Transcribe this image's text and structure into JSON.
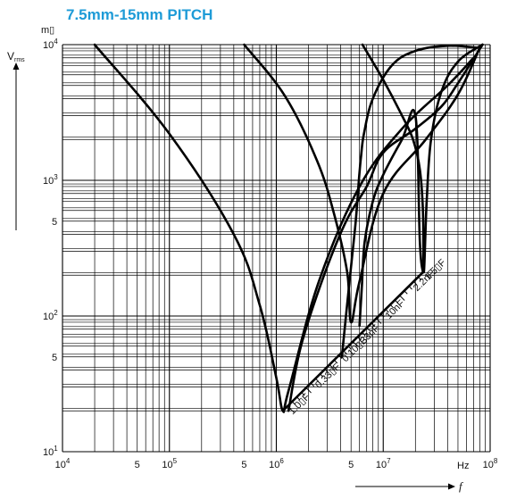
{
  "chart_data": {
    "type": "line",
    "title": "7.5mm-15mm PITCH",
    "x_scale": "log",
    "y_scale": "log",
    "xlim": [
      10000,
      100000000
    ],
    "ylim": [
      10,
      10000
    ],
    "grid": true,
    "y_unit_label": "m▯",
    "y_axis_symbol": "V",
    "y_axis_subscript": "rms",
    "x_axis_symbol": "f",
    "x_unit_label": "Hz",
    "x_ticks": [
      {
        "value": 10000,
        "base": "10",
        "exp": "4"
      },
      {
        "value": 50000,
        "base": "5",
        "exp": ""
      },
      {
        "value": 100000,
        "base": "10",
        "exp": "5"
      },
      {
        "value": 500000,
        "base": "5",
        "exp": ""
      },
      {
        "value": 1000000,
        "base": "10",
        "exp": "6"
      },
      {
        "value": 5000000,
        "base": "5",
        "exp": ""
      },
      {
        "value": 10000000,
        "base": "10",
        "exp": "7"
      },
      {
        "value": 100000000,
        "base": "10",
        "exp": "8"
      }
    ],
    "y_ticks": [
      {
        "value": 10,
        "base": "10",
        "exp": "1"
      },
      {
        "value": 50,
        "base": "5",
        "exp": ""
      },
      {
        "value": 100,
        "base": "10",
        "exp": "2"
      },
      {
        "value": 500,
        "base": "5",
        "exp": ""
      },
      {
        "value": 1000,
        "base": "10",
        "exp": "3"
      },
      {
        "value": 10000,
        "base": "10",
        "exp": "4"
      }
    ],
    "series": [
      {
        "name": "1.0▯F",
        "x": [
          20000,
          100000,
          400000,
          700000,
          1000000,
          1150000,
          1300000,
          2500000,
          6000000,
          15000000,
          40000000,
          70000000
        ],
        "y": [
          10000,
          2200,
          400,
          120,
          35,
          20,
          28,
          180,
          900,
          2400,
          5000,
          8000
        ]
      },
      {
        "name": "0.33▯F",
        "x": [
          500000,
          1200000,
          2400000,
          3500000,
          4600000,
          5000000,
          6000000,
          10000000,
          25000000,
          50000000,
          80000000
        ],
        "y": [
          10000,
          4200,
          1400,
          550,
          210,
          90,
          180,
          800,
          2000,
          4300,
          9500
        ]
      },
      {
        "name": "0.10▯F",
        "x": [
          1300000,
          1700000,
          2800000,
          4500000,
          7000000,
          10000000,
          20000000,
          35000000,
          50000000,
          85000000
        ],
        "y": [
          20,
          60,
          200,
          500,
          900,
          1600,
          2400,
          3500,
          5200,
          10000
        ]
      },
      {
        "name": "33nF",
        "x": [
          4100000,
          4800000,
          5500000,
          5950000,
          6200000,
          6600000,
          8000000,
          12000000,
          20000000,
          40000000,
          75000000
        ],
        "y": [
          50,
          170,
          480,
          1050,
          1500,
          2200,
          4000,
          7000,
          9000,
          9800,
          9500
        ]
      },
      {
        "name": "10nF",
        "x": [
          6000000,
          6300000,
          6700000,
          8000000,
          10000000,
          15000000,
          20000000,
          22000000,
          23500000
        ],
        "y": [
          85,
          160,
          350,
          700,
          1100,
          2000,
          3000,
          350,
          210
        ]
      },
      {
        "name": "2.2nF",
        "x": [
          6400000,
          10000000,
          15000000,
          19000000,
          22000000,
          23500000,
          24000000,
          25500000,
          28000000,
          35000000,
          50000000,
          85000000
        ],
        "y": [
          10000,
          5500,
          3000,
          2000,
          1200,
          600,
          210,
          700,
          2000,
          4500,
          7500,
          10000
        ]
      },
      {
        "name": "1.5▯F",
        "x": [],
        "y": []
      }
    ],
    "capacitance_labels": [
      "1.5▯F",
      "2.2nF",
      "10nF",
      "33nF",
      "0.10▯F",
      "0.33▯F",
      "1.0▯F"
    ]
  }
}
